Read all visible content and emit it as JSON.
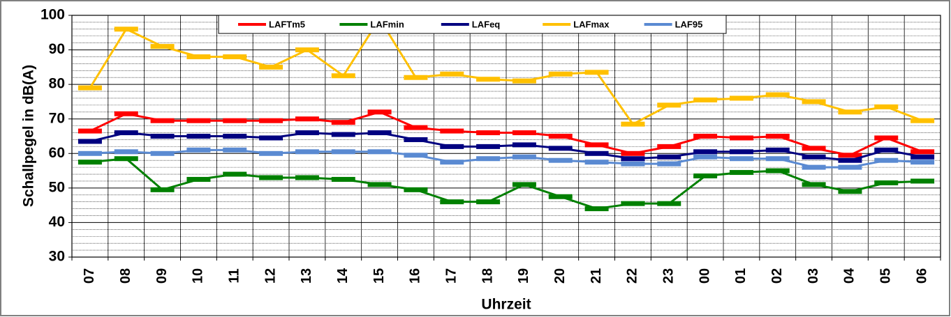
{
  "chart_data": {
    "type": "line",
    "y_label": "Schallpegel in dB(A)",
    "x_label": "Uhrzeit",
    "categories": [
      "07",
      "08",
      "09",
      "10",
      "11",
      "12",
      "13",
      "14",
      "15",
      "16",
      "17",
      "18",
      "19",
      "20",
      "21",
      "22",
      "23",
      "00",
      "01",
      "02",
      "03",
      "04",
      "05",
      "06"
    ],
    "ylim": [
      30,
      100
    ],
    "yticks": [
      30,
      40,
      50,
      60,
      70,
      80,
      90,
      100
    ],
    "grid": true,
    "legend": "top",
    "series": [
      {
        "name": "LAFTm5",
        "color": "#ff0000",
        "values": [
          66.5,
          71.5,
          69.5,
          69.5,
          69.5,
          69.5,
          70,
          69,
          72,
          67.5,
          66.5,
          66,
          66,
          65,
          62.5,
          60,
          62,
          65,
          64.5,
          65,
          61.5,
          59.5,
          64.5,
          60.5
        ]
      },
      {
        "name": "LAFmin",
        "color": "#008000",
        "values": [
          57.5,
          58.5,
          49.5,
          52.5,
          54,
          53,
          53,
          52.5,
          51,
          49.5,
          46,
          46,
          51,
          47.5,
          44,
          45.5,
          45.5,
          53.5,
          54.5,
          55,
          51,
          49,
          51.5,
          52
        ]
      },
      {
        "name": "LAFeq",
        "color": "#000080",
        "values": [
          63.5,
          66,
          65,
          65,
          65,
          64.5,
          66,
          65.5,
          66,
          64,
          62,
          62,
          62.5,
          61.5,
          60,
          58.5,
          59,
          60.5,
          60.5,
          61,
          59,
          58,
          61,
          59
        ]
      },
      {
        "name": "LAFmax",
        "color": "#ffc000",
        "values": [
          79,
          96,
          91,
          88,
          88,
          85,
          90,
          82.5,
          99,
          82,
          83,
          81.5,
          81,
          83,
          83.5,
          68.5,
          74,
          75.5,
          76,
          77,
          75,
          72,
          73.5,
          69.5
        ]
      },
      {
        "name": "LAF95",
        "color": "#5a8ad2",
        "values": [
          60,
          60.5,
          60,
          61,
          61,
          60,
          60.5,
          60.5,
          60.5,
          59.5,
          57.5,
          58.5,
          59,
          58,
          57.5,
          57,
          57,
          59,
          58.5,
          58.5,
          56,
          56,
          58,
          57.5
        ]
      }
    ]
  }
}
